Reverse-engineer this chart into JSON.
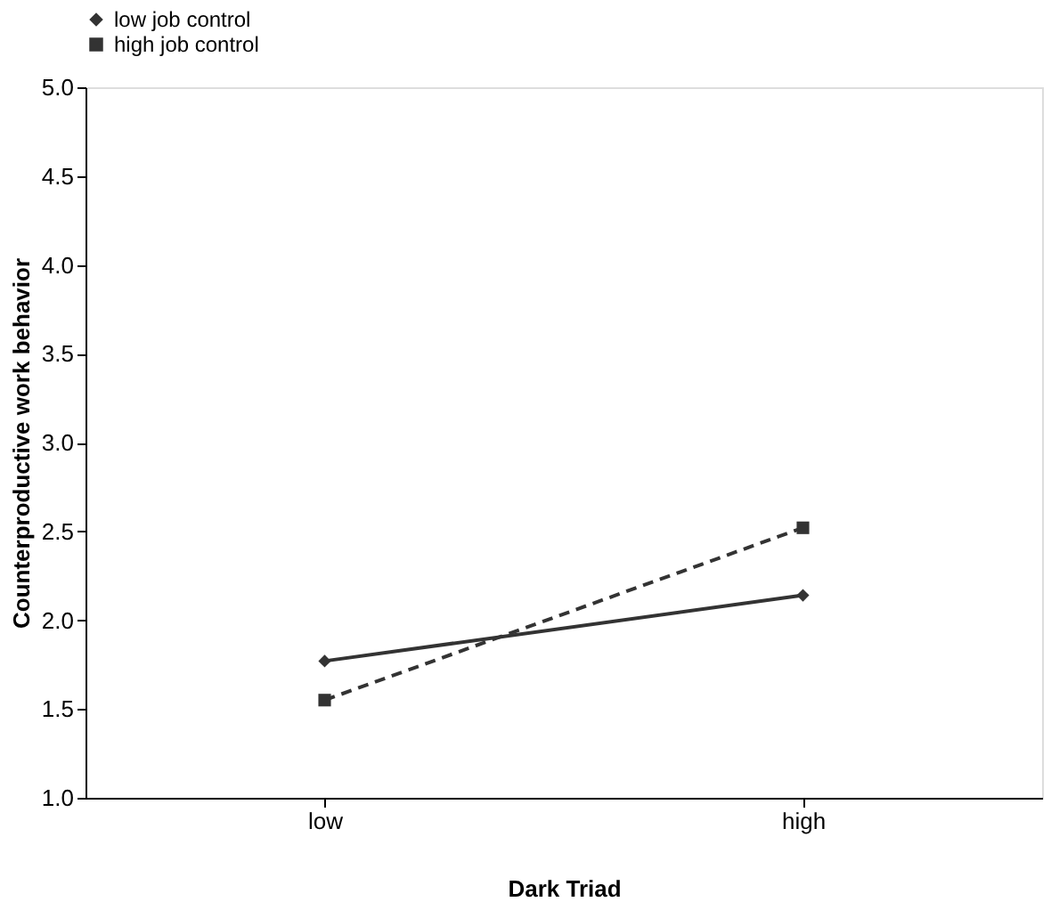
{
  "chart_data": {
    "type": "line",
    "xlabel": "Dark Triad",
    "ylabel": "Counterproductive work behavior",
    "categories": [
      "low",
      "high"
    ],
    "series": [
      {
        "name": "low job control",
        "color": "#333333",
        "values": [
          1.77,
          2.14
        ],
        "marker": "diamond",
        "line_style": "solid"
      },
      {
        "name": "high job control",
        "color": "#333333",
        "values": [
          1.55,
          2.52
        ],
        "marker": "square",
        "line_style": "dashed"
      }
    ],
    "ylim": [
      1.0,
      5.0
    ],
    "yticks": [
      {
        "value": 1.0,
        "label": "1.0"
      },
      {
        "value": 1.5,
        "label": "1.5"
      },
      {
        "value": 2.0,
        "label": "2.0"
      },
      {
        "value": 2.5,
        "label": "2.5"
      },
      {
        "value": 3.0,
        "label": "3.0"
      },
      {
        "value": 3.5,
        "label": "3.5"
      },
      {
        "value": 4.0,
        "label": "4.0"
      },
      {
        "value": 4.5,
        "label": "4.5"
      },
      {
        "value": 5.0,
        "label": "5.0"
      }
    ],
    "grid": false,
    "legend": "top"
  }
}
